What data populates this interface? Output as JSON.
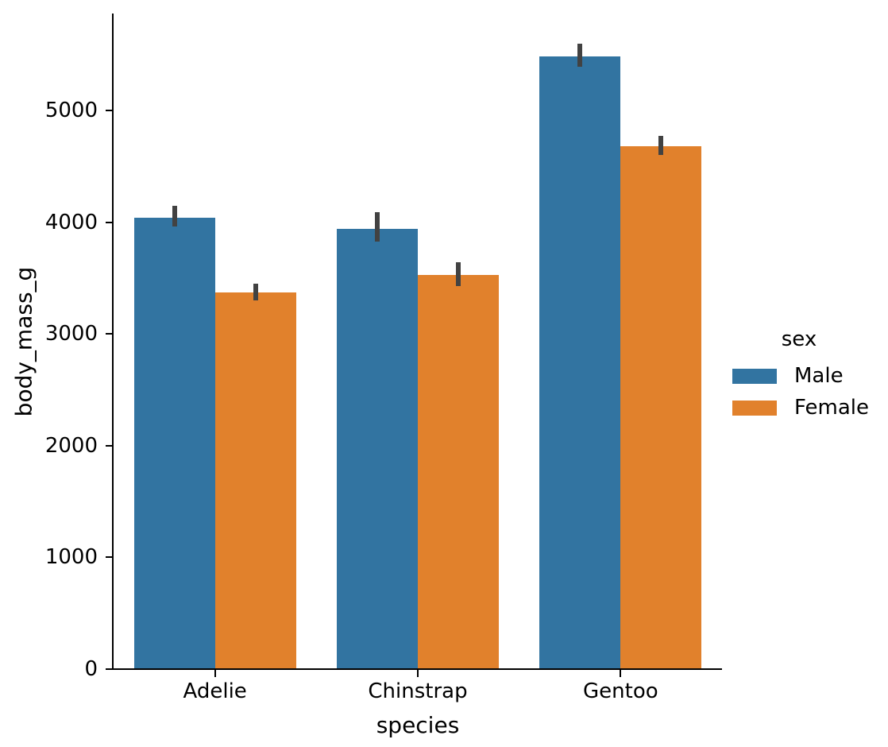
{
  "chart_data": {
    "type": "bar",
    "title": "",
    "xlabel": "species",
    "ylabel": "body_mass_g",
    "categories": [
      "Adelie",
      "Chinstrap",
      "Gentoo"
    ],
    "series": [
      {
        "name": "Male",
        "color": "#3274a1",
        "values": [
          4043,
          3939,
          5485
        ],
        "error_low": [
          3960,
          3830,
          5390
        ],
        "error_high": [
          4150,
          4090,
          5600
        ]
      },
      {
        "name": "Female",
        "color": "#e1812c",
        "values": [
          3369,
          3527,
          4680
        ],
        "error_low": [
          3300,
          3430,
          4600
        ],
        "error_high": [
          3450,
          3640,
          4770
        ]
      }
    ],
    "y_ticks": [
      0,
      1000,
      2000,
      3000,
      4000,
      5000
    ],
    "ylim": [
      0,
      5868
    ],
    "grid": false,
    "error_bar_color": "#424242",
    "legend": {
      "title": "sex",
      "position": "center right",
      "entries": [
        {
          "label": "Male",
          "color": "#3274a1"
        },
        {
          "label": "Female",
          "color": "#e1812c"
        }
      ]
    }
  }
}
